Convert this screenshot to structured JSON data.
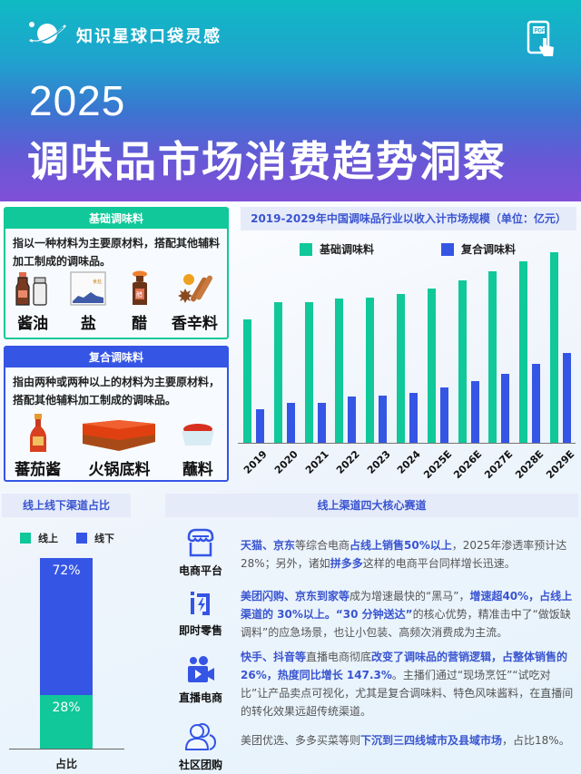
{
  "header": {
    "brand": "知识星球口袋灵感",
    "year": "2025",
    "title": "调味品市场消费趋势洞察",
    "icons": {
      "logo": "planet-icon",
      "pdf": "pdf-tap-icon"
    }
  },
  "colors": {
    "green": "#10c899",
    "blue": "#3555e5",
    "title_blue": "#3a55d0",
    "section_bg": "#e6ebfa"
  },
  "basic": {
    "title": "基础调味料",
    "desc": "指以一种材料为主要原材料，搭配其他辅料加工制成的调味品。",
    "items": [
      {
        "label": "酱油",
        "icon": "soy-sauce-icon"
      },
      {
        "label": "盐",
        "icon": "salt-bag-icon"
      },
      {
        "label": "醋",
        "icon": "vinegar-bottle-icon"
      },
      {
        "label": "香辛料",
        "icon": "spices-icon"
      }
    ]
  },
  "compound": {
    "title": "复合调味料",
    "desc": "指由两种或两种以上的材料为主要原材料，搭配其他辅料加工制成的调味品。",
    "items": [
      {
        "label": "蕃茄酱",
        "icon": "ketchup-bottle-icon"
      },
      {
        "label": "火锅底料",
        "icon": "hotpot-base-icon"
      },
      {
        "label": "蘸料",
        "icon": "dipping-sauce-icon"
      }
    ]
  },
  "chart_data": [
    {
      "type": "bar",
      "title": "2019-2029年中国调味品行业以收入计市场规模（单位：亿元）",
      "categories": [
        "2019",
        "2020",
        "2021",
        "2022",
        "2023",
        "2024",
        "2025E",
        "2026E",
        "2027E",
        "2028E",
        "2029E"
      ],
      "series": [
        {
          "name": "基础调味料",
          "color": "#10c899",
          "values": [
            136,
            155,
            155,
            159,
            160,
            164,
            170,
            179,
            189,
            200,
            210
          ]
        },
        {
          "name": "复合调味料",
          "color": "#3555e5",
          "values": [
            37,
            44,
            44,
            51,
            52,
            55,
            61,
            68,
            76,
            87,
            99
          ]
        }
      ],
      "xlabel": "",
      "ylabel": "",
      "grid": false,
      "legend_position": "top",
      "note": "No y-axis shown; values are relative bar heights estimated from pixels"
    },
    {
      "type": "bar",
      "title": "线上线下渠道占比",
      "stacked": true,
      "categories": [
        "占比"
      ],
      "series": [
        {
          "name": "线上",
          "color": "#10c899",
          "values": [
            28
          ]
        },
        {
          "name": "线下",
          "color": "#3555e5",
          "values": [
            72
          ]
        }
      ],
      "data_labels": [
        "28%",
        "72%"
      ],
      "legend_position": "top"
    }
  ],
  "chart": {
    "title": "2019-2029年中国调味品行业以收入计市场规模（单位：亿元）",
    "legend": [
      "基础调味料",
      "复合调味料"
    ],
    "x": [
      "2019",
      "2020",
      "2021",
      "2022",
      "2023",
      "2024",
      "2025E",
      "2026E",
      "2027E",
      "2028E",
      "2029E"
    ]
  },
  "split": {
    "title": "线上线下渠道占比",
    "legend": [
      "线上",
      "线下"
    ],
    "online": "28%",
    "offline": "72%",
    "xlabel": "占比"
  },
  "channels": {
    "title": "线上渠道四大核心赛道",
    "items": [
      {
        "label": "电商平台",
        "icon": "storefront-icon",
        "segments": [
          {
            "t": "天猫、京东",
            "h": true
          },
          {
            "t": "等综合电商",
            "h": false
          },
          {
            "t": "占线上销售50%以上",
            "h": true
          },
          {
            "t": "，2025年渗透率预计达28%；另外，诸如",
            "h": false
          },
          {
            "t": "拼多多",
            "h": true
          },
          {
            "t": "这样的电商平台同样增长迅速。",
            "h": false
          }
        ]
      },
      {
        "label": "即时零售",
        "icon": "instant-lightning-icon",
        "segments": [
          {
            "t": "美团闪购、京东到家等",
            "h": true
          },
          {
            "t": "成为增速最快的“黑马”，",
            "h": false
          },
          {
            "t": "增速超40%，占线上渠道的 30%以上。“30 分钟送达”",
            "h": true
          },
          {
            "t": "的核心优势，精准击中了“做饭缺调料”的应急场景，也让小包装、高频次消费成为主流。",
            "h": false
          }
        ]
      },
      {
        "label": "直播电商",
        "icon": "video-camera-icon",
        "segments": [
          {
            "t": "快手、抖音等",
            "h": true
          },
          {
            "t": "直播电商彻底",
            "h": false
          },
          {
            "t": "改变了调味品的营销逻辑，占整体销售的26%，热度同比增长 147.3%",
            "h": true
          },
          {
            "t": "。主播们通过“现场烹饪”“试吃对比”让产品卖点可视化，尤其是复合调味料、特色风味酱料，在直播间的转化效果远超传统渠道。",
            "h": false
          }
        ]
      },
      {
        "label": "社区团购",
        "icon": "community-users-icon",
        "segments": [
          {
            "t": "美团优选、多多买菜等则",
            "h": false
          },
          {
            "t": "下沉到三四线城市及县域市场",
            "h": true
          },
          {
            "t": "，占比18%。",
            "h": false
          }
        ]
      }
    ]
  }
}
